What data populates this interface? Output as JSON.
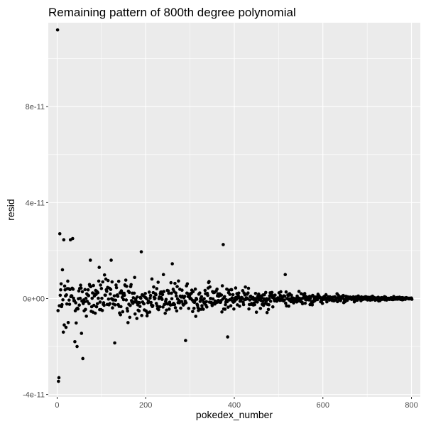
{
  "chart_data": {
    "type": "scatter",
    "title": "Remaining pattern of 800th degree polynomial",
    "xlabel": "pokedex_number",
    "ylabel": "resid",
    "xlim": [
      -20,
      820
    ],
    "ylim": [
      -4.1e-11,
      1.15e-10
    ],
    "x_ticks": [
      0,
      200,
      400,
      600,
      800
    ],
    "x_tick_labels": [
      "0",
      "200",
      "400",
      "600",
      "800"
    ],
    "y_ticks": [
      -4e-11,
      0,
      4e-11,
      8e-11
    ],
    "y_tick_labels": [
      "-4e-11",
      "0e+00",
      "4e-11",
      "8e-11"
    ],
    "grid": true,
    "legend": "none",
    "point_color": "#000000",
    "panel_background": "#ebebeb",
    "n_points": 801,
    "points": [
      {
        "x": 1,
        "y": 1.12e-10
      },
      {
        "x": 3,
        "y": -3.45e-11
      },
      {
        "x": 4,
        "y": -3.3e-11
      },
      {
        "x": 6,
        "y": 2.7e-11
      },
      {
        "x": 5,
        "y": -3e-12
      },
      {
        "x": 12,
        "y": 1.2e-11
      },
      {
        "x": 15,
        "y": 2.45e-11
      },
      {
        "x": 14,
        "y": -1.4e-11
      },
      {
        "x": 16,
        "y": -1.1e-11
      },
      {
        "x": 20,
        "y": -1.2e-11
      },
      {
        "x": 25,
        "y": -1e-11
      },
      {
        "x": 35,
        "y": 2.5e-11
      },
      {
        "x": 30,
        "y": 2.45e-11
      },
      {
        "x": 40,
        "y": -1.8e-11
      },
      {
        "x": 45,
        "y": -2e-11
      },
      {
        "x": 55,
        "y": -1.45e-11
      },
      {
        "x": 58,
        "y": -2.5e-11
      },
      {
        "x": 75,
        "y": 1.6e-11
      },
      {
        "x": 95,
        "y": 1.3e-11
      },
      {
        "x": 122,
        "y": 1.6e-11
      },
      {
        "x": 130,
        "y": -1.85e-11
      },
      {
        "x": 190,
        "y": 1.95e-11
      },
      {
        "x": 240,
        "y": 1e-11
      },
      {
        "x": 260,
        "y": 1.45e-11
      },
      {
        "x": 290,
        "y": -1.75e-11
      },
      {
        "x": 375,
        "y": 2.25e-11
      },
      {
        "x": 385,
        "y": -1.6e-11
      },
      {
        "x": 515,
        "y": 1e-11
      }
    ],
    "envelope": [
      {
        "x": 0,
        "amp": 1.2e-11
      },
      {
        "x": 100,
        "amp": 1.05e-11
      },
      {
        "x": 200,
        "amp": 9.5e-12
      },
      {
        "x": 300,
        "amp": 8e-12
      },
      {
        "x": 400,
        "amp": 6.5e-12
      },
      {
        "x": 500,
        "amp": 4.5e-12
      },
      {
        "x": 600,
        "amp": 2.5e-12
      },
      {
        "x": 700,
        "amp": 1.3e-12
      },
      {
        "x": 800,
        "amp": 5e-13
      }
    ],
    "seed": 12345
  }
}
